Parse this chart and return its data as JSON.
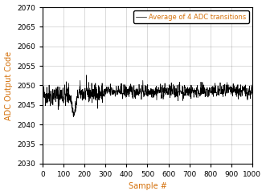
{
  "title": "",
  "xlabel": "Sample #",
  "ylabel": "ADC Output Code",
  "xlim": [
    0,
    1000
  ],
  "ylim": [
    2030,
    2070
  ],
  "yticks": [
    2030,
    2035,
    2040,
    2045,
    2050,
    2055,
    2060,
    2065,
    2070
  ],
  "xticks": [
    0,
    100,
    200,
    300,
    400,
    500,
    600,
    700,
    800,
    900,
    1000
  ],
  "line_color": "#000000",
  "legend_label": "Average of 4 ADC transitions",
  "legend_text_color": "#d4700a",
  "axis_label_color": "#d4700a",
  "tick_label_color": "#000000",
  "background_color": "#ffffff",
  "grid_color": "#000000",
  "mean_value": 2048.5,
  "n_samples": 1001,
  "seed": 42
}
